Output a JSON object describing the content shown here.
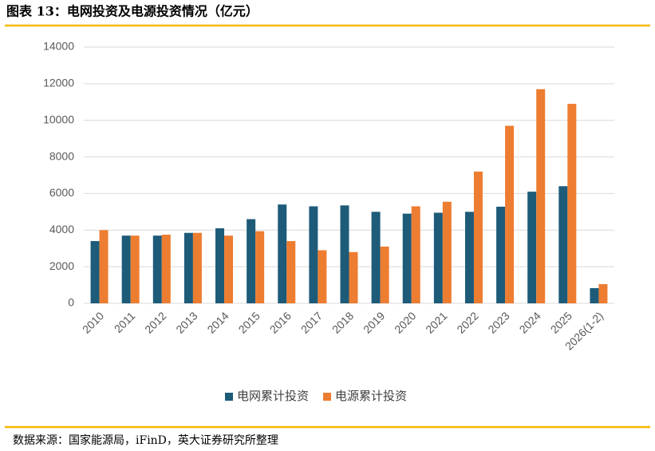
{
  "chart_data": {
    "type": "bar",
    "title": "图表 13：电网投资及电源投资情况（亿元）",
    "source": "数据来源：国家能源局，iFinD，英大证券研究所整理",
    "categories": [
      "2010",
      "2011",
      "2012",
      "2013",
      "2014",
      "2015",
      "2016",
      "2017",
      "2018",
      "2019",
      "2020",
      "2021",
      "2022",
      "2023",
      "2024",
      "2025",
      "2026(1-2)"
    ],
    "series": [
      {
        "name": "电网累计投资",
        "color": "#1d5b79",
        "values": [
          3400,
          3700,
          3700,
          3850,
          4100,
          4600,
          5400,
          5300,
          5350,
          5000,
          4900,
          4950,
          5000,
          5280,
          6100,
          6400,
          830
        ]
      },
      {
        "name": "电源累计投资",
        "color": "#ed7d31",
        "values": [
          4000,
          3700,
          3750,
          3850,
          3700,
          3940,
          3400,
          2900,
          2800,
          3100,
          5300,
          5550,
          7200,
          9700,
          11700,
          10900,
          1050
        ]
      }
    ],
    "ylim": [
      0,
      14000
    ],
    "yticks": [
      0,
      2000,
      4000,
      6000,
      8000,
      10000,
      12000,
      14000
    ],
    "grid": true,
    "legend": "bottom"
  }
}
